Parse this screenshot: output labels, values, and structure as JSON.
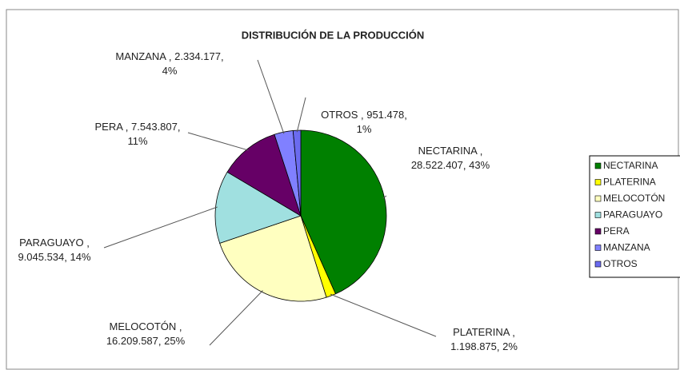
{
  "chart_data": {
    "type": "pie",
    "title": "DISTRIBUCIÓN DE LA PRODUCCIÓN",
    "categories": [
      "NECTARINA",
      "PLATERINA",
      "MELOCOTÓN",
      "PARAGUAYO",
      "PERA",
      "MANZANA",
      "OTROS"
    ],
    "values": [
      28522407,
      1198875,
      16209587,
      9045534,
      7543807,
      2334177,
      951478
    ],
    "value_labels": [
      "28.522.407",
      "1.198.875",
      "16.209.587",
      "9.045.534",
      "7.543.807",
      "2.334.177",
      "951.478"
    ],
    "percents": [
      43,
      2,
      25,
      14,
      11,
      4,
      1
    ],
    "percent_labels": [
      "43%",
      "2%",
      "25%",
      "14%",
      "11%",
      "4%",
      "1%"
    ],
    "colors": [
      "#008000",
      "#ffff00",
      "#ffffc0",
      "#a0e0e0",
      "#660066",
      "#8080ff",
      "#6b6bf0"
    ],
    "legend": "right"
  }
}
